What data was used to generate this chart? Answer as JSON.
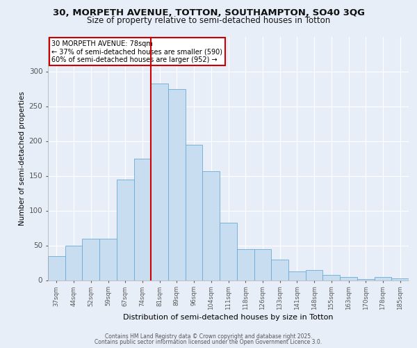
{
  "title_line1": "30, MORPETH AVENUE, TOTTON, SOUTHAMPTON, SO40 3QG",
  "title_line2": "Size of property relative to semi-detached houses in Totton",
  "xlabel": "Distribution of semi-detached houses by size in Totton",
  "ylabel": "Number of semi-detached properties",
  "categories": [
    "37sqm",
    "44sqm",
    "52sqm",
    "59sqm",
    "67sqm",
    "74sqm",
    "81sqm",
    "89sqm",
    "96sqm",
    "104sqm",
    "111sqm",
    "118sqm",
    "126sqm",
    "133sqm",
    "141sqm",
    "148sqm",
    "155sqm",
    "163sqm",
    "170sqm",
    "178sqm",
    "185sqm"
  ],
  "values": [
    35,
    50,
    60,
    60,
    145,
    175,
    283,
    275,
    195,
    157,
    83,
    45,
    45,
    30,
    13,
    15,
    8,
    5,
    2,
    5,
    3
  ],
  "bar_color": "#c9ddf0",
  "bar_edge_color": "#6aaad4",
  "property_label": "30 MORPETH AVENUE: 78sqm",
  "pct_smaller": 37,
  "n_smaller": 590,
  "pct_larger": 60,
  "n_larger": 952,
  "vline_color": "#cc0000",
  "vline_bin_index": 6,
  "annotation_box_edge_color": "#cc0000",
  "ylim": [
    0,
    350
  ],
  "yticks": [
    0,
    50,
    100,
    150,
    200,
    250,
    300
  ],
  "footer_line1": "Contains HM Land Registry data © Crown copyright and database right 2025.",
  "footer_line2": "Contains public sector information licensed under the Open Government Licence 3.0.",
  "background_color": "#e8eef8",
  "plot_background": "#e8eef8"
}
